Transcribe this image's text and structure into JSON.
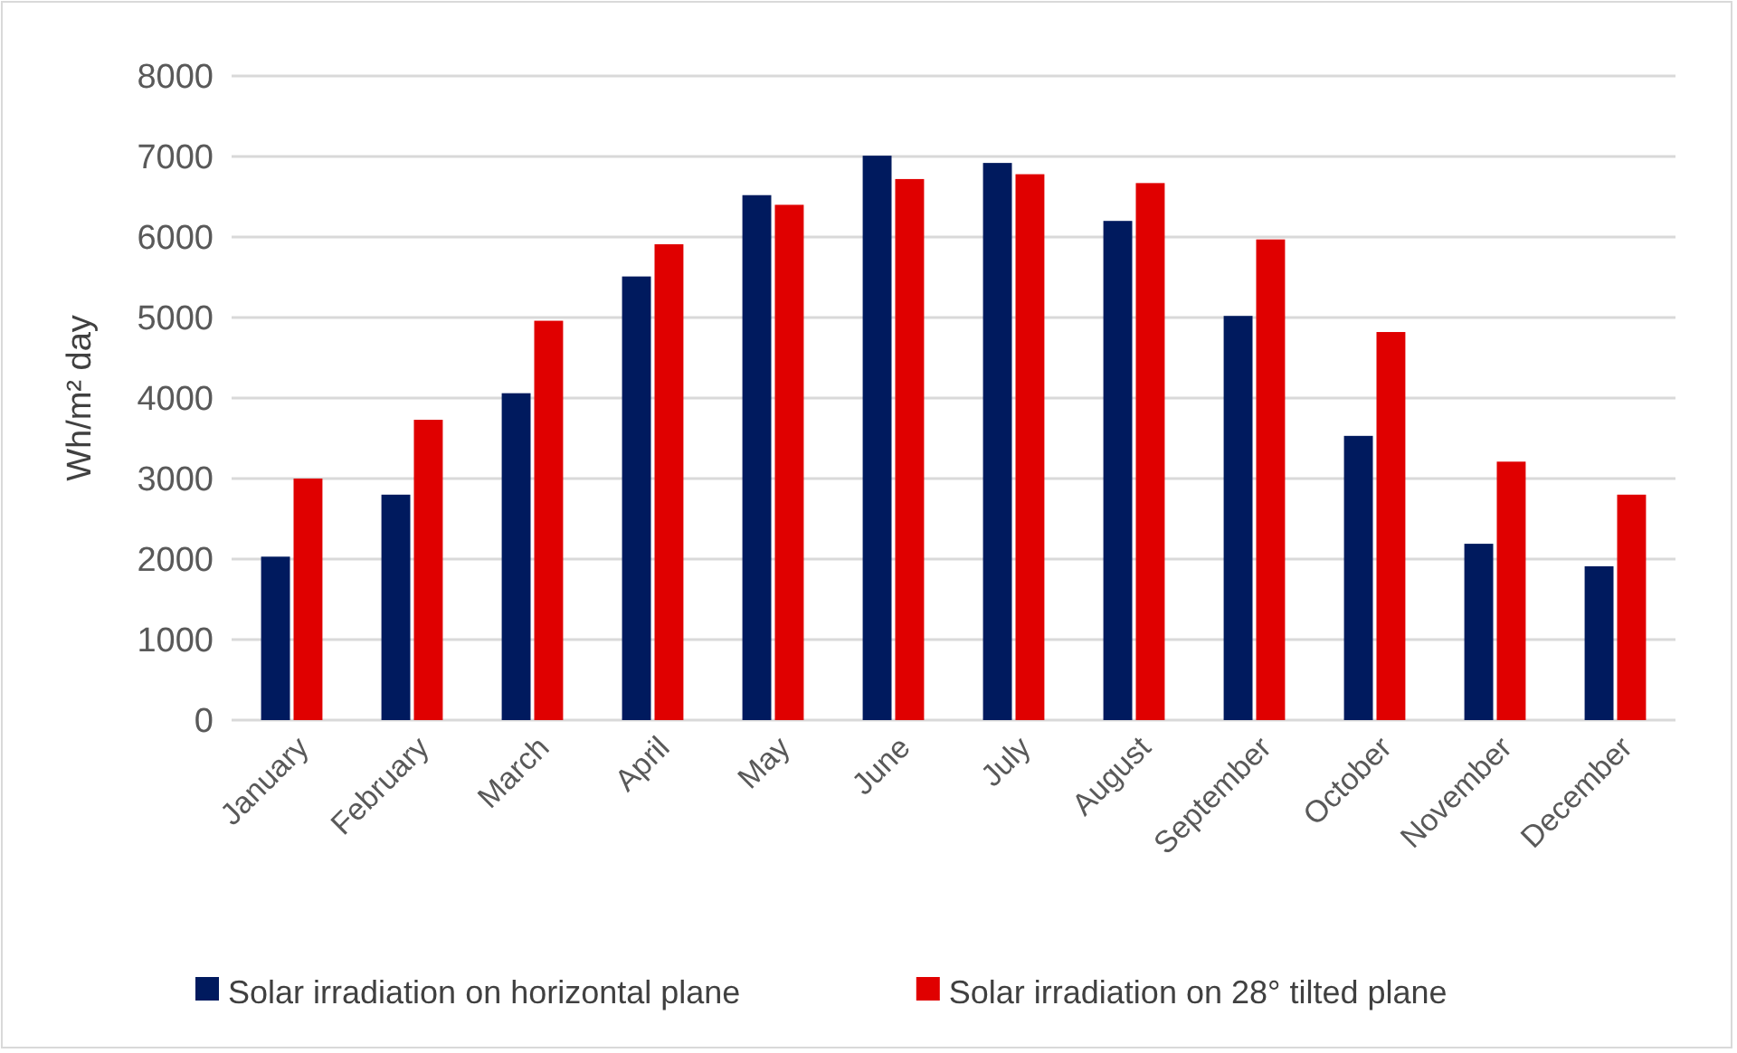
{
  "chart_data": {
    "type": "bar",
    "ylabel": "Wh/m² day",
    "categories": [
      "January",
      "February",
      "March",
      "April",
      "May",
      "June",
      "July",
      "August",
      "September",
      "October",
      "November",
      "December"
    ],
    "series": [
      {
        "name": "Solar irradiation on horizontal plane",
        "color": "#001a5e",
        "values": [
          2030,
          2800,
          4060,
          5510,
          6520,
          7010,
          6920,
          6200,
          5020,
          3530,
          2190,
          1910
        ]
      },
      {
        "name": "Solar irradiation on 28° tilted plane",
        "color": "#e00000",
        "values": [
          3000,
          3730,
          4960,
          5910,
          6400,
          6720,
          6780,
          6670,
          5970,
          4820,
          3210,
          2800
        ]
      }
    ],
    "ylim": [
      0,
      8000
    ],
    "yticks": [
      0,
      1000,
      2000,
      3000,
      4000,
      5000,
      6000,
      7000,
      8000
    ],
    "grid": "y",
    "legend": "bottom"
  }
}
